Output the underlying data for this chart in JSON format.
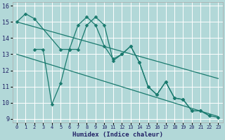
{
  "title": "",
  "xlabel": "Humidex (Indice chaleur)",
  "bg_color": "#b2d8d8",
  "grid_color": "#ffffff",
  "line_color": "#1a7a6e",
  "xlim": [
    -0.5,
    23.5
  ],
  "ylim": [
    8.8,
    16.2
  ],
  "yticks": [
    9,
    10,
    11,
    12,
    13,
    14,
    15,
    16
  ],
  "xticks": [
    0,
    1,
    2,
    3,
    4,
    5,
    6,
    7,
    8,
    9,
    10,
    11,
    12,
    13,
    14,
    15,
    16,
    17,
    18,
    19,
    20,
    21,
    22,
    23
  ],
  "line_upper_x": [
    0,
    1,
    2,
    5,
    6,
    7,
    8,
    9,
    10,
    11,
    12,
    13,
    14,
    15,
    16,
    17,
    18,
    19,
    20,
    21,
    22
  ],
  "line_upper_y": [
    15.0,
    15.5,
    15.2,
    13.3,
    13.3,
    14.8,
    15.3,
    14.8,
    13.5,
    12.7,
    13.0,
    13.5,
    12.5,
    11.0,
    10.5,
    11.3,
    10.3,
    10.2,
    9.5,
    9.5,
    9.2
  ],
  "line_lower_x": [
    2,
    3,
    4,
    5,
    6,
    7,
    8,
    9,
    10,
    11,
    12,
    13,
    14,
    15,
    16,
    17,
    18,
    19,
    20,
    21,
    22,
    23
  ],
  "line_lower_y": [
    13.3,
    13.3,
    9.9,
    11.2,
    13.3,
    13.3,
    14.8,
    15.3,
    14.8,
    12.6,
    13.0,
    13.5,
    12.5,
    11.0,
    10.5,
    11.3,
    10.3,
    10.2,
    9.5,
    9.5,
    9.2,
    9.1
  ],
  "trend1_x": [
    0,
    23
  ],
  "trend1_y": [
    15.0,
    11.5
  ],
  "trend2_x": [
    0,
    23
  ],
  "trend2_y": [
    13.0,
    9.15
  ],
  "marker_size": 2.5,
  "linewidth": 0.9
}
